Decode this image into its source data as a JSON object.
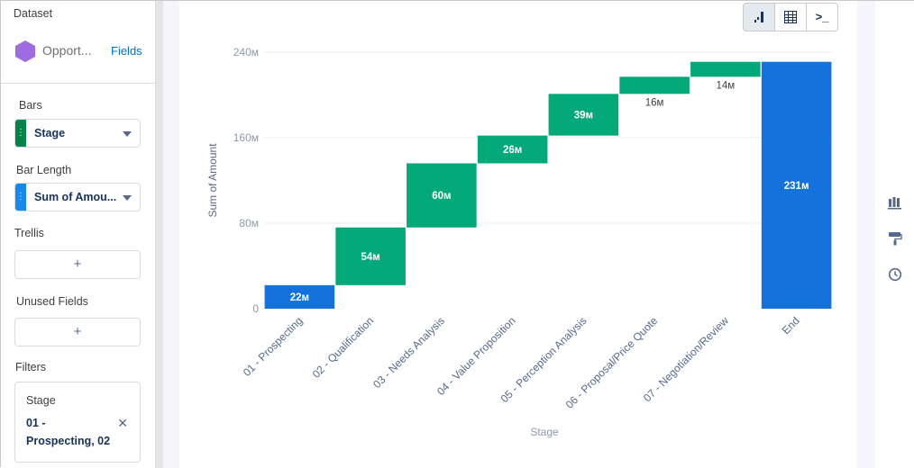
{
  "left_panel": {
    "dataset_label": "Dataset",
    "dataset_name": "Opport...",
    "fields_link": "Fields",
    "bars_label": "Bars",
    "bars_value": "Stage",
    "bar_length_label": "Bar Length",
    "bar_length_value": "Sum of Amou...",
    "trellis_label": "Trellis",
    "trellis_add": "+",
    "unused_label": "Unused Fields",
    "unused_add": "+",
    "filters_label": "Filters",
    "filter_field": "Stage",
    "filter_value": "01 - Prospecting, 02",
    "filter_remove": "✕"
  },
  "toolbar": {
    "chart_view_icon": "chart-icon",
    "table_view_icon": "table-icon",
    "query_view_label": ">_"
  },
  "right_rail": {
    "icons": [
      "bar-chart-icon",
      "paint-roller-icon",
      "clock-icon"
    ]
  },
  "colors": {
    "increase": "#04a97a",
    "total": "#1372dc",
    "axis_text": "#8a9ab0",
    "grid": "#e8ecf1"
  },
  "chart_data": {
    "type": "bar",
    "subtype": "waterfall",
    "xlabel": "Stage",
    "ylabel": "Sum of Amount",
    "ylim": [
      0,
      240
    ],
    "y_ticks": [
      0,
      80,
      160,
      240
    ],
    "y_tick_labels": [
      "0",
      "80м",
      "160м",
      "240м"
    ],
    "categories": [
      "01 - Prospecting",
      "02 - Qualification",
      "03 - Needs Analysis",
      "04 - Value Proposition",
      "05 - Perception Analysis",
      "06 - Proposal/Price Quote",
      "07 - Negotiation/Review",
      "End"
    ],
    "values": [
      22,
      54,
      60,
      26,
      39,
      16,
      14,
      231
    ],
    "value_labels": [
      "22м",
      "54м",
      "60м",
      "26м",
      "39м",
      "16м",
      "14м",
      "231м"
    ],
    "bar_kind": [
      "total",
      "increase",
      "increase",
      "increase",
      "increase",
      "increase",
      "increase",
      "total"
    ]
  }
}
